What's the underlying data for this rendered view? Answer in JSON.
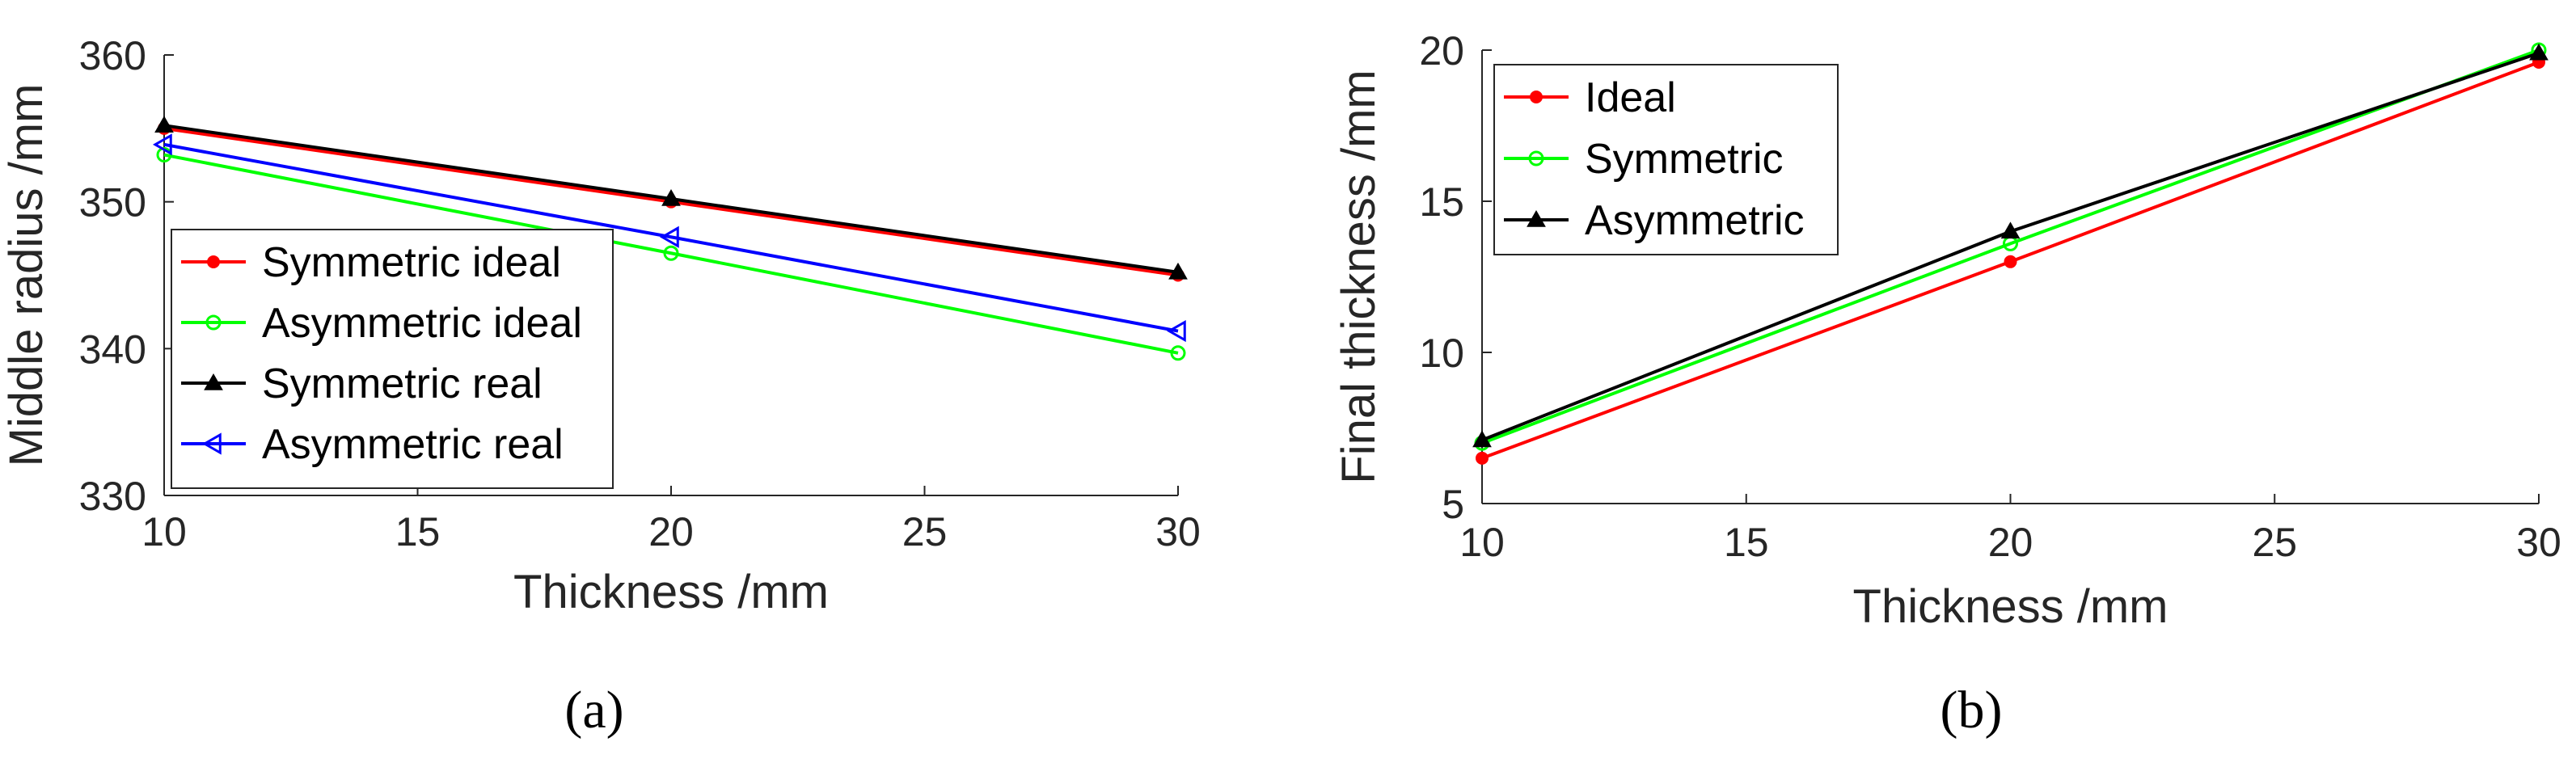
{
  "chart_data": [
    {
      "type": "line",
      "panel_label": "(a)",
      "title": "",
      "xlabel": "Thickness /mm",
      "ylabel": "Middle radius /mm",
      "xlim": [
        10,
        30
      ],
      "ylim": [
        330,
        360
      ],
      "xticks": [
        10,
        15,
        20,
        25,
        30
      ],
      "yticks": [
        330,
        340,
        350,
        360
      ],
      "xtick_labels": [
        "10",
        "15",
        "20",
        "25",
        "30"
      ],
      "ytick_labels": [
        "330",
        "340",
        "350",
        "360"
      ],
      "grid": false,
      "legend_position": "bottom-left",
      "x": [
        10,
        20,
        30
      ],
      "series": [
        {
          "name": "Symmetric ideal",
          "color": "#ff0000",
          "marker": "dot",
          "values": [
            355.0,
            350.0,
            345.0
          ]
        },
        {
          "name": "Asymmetric ideal",
          "color": "#00ff00",
          "marker": "circle",
          "values": [
            353.2,
            346.5,
            339.7
          ]
        },
        {
          "name": "Symmetric real",
          "color": "#000000",
          "marker": "triangle-up",
          "values": [
            355.2,
            350.2,
            345.2
          ]
        },
        {
          "name": "Asymmetric real",
          "color": "#0000ff",
          "marker": "triangle-left",
          "values": [
            353.9,
            347.6,
            341.2
          ]
        }
      ]
    },
    {
      "type": "line",
      "panel_label": "(b)",
      "title": "",
      "xlabel": "Thickness /mm",
      "ylabel": "Final thickness /mm",
      "xlim": [
        10,
        30
      ],
      "ylim": [
        5,
        20
      ],
      "xticks": [
        10,
        15,
        20,
        25,
        30
      ],
      "yticks": [
        5,
        10,
        15,
        20
      ],
      "xtick_labels": [
        "10",
        "15",
        "20",
        "25",
        "30"
      ],
      "ytick_labels": [
        "5",
        "10",
        "15",
        "20"
      ],
      "grid": false,
      "legend_position": "top-left",
      "x": [
        10,
        20,
        30
      ],
      "series": [
        {
          "name": "Ideal",
          "color": "#ff0000",
          "marker": "dot",
          "values": [
            6.5,
            13.0,
            19.6
          ]
        },
        {
          "name": "Symmetric",
          "color": "#00ff00",
          "marker": "circle",
          "values": [
            7.0,
            13.6,
            20.0
          ]
        },
        {
          "name": "Asymmetric",
          "color": "#000000",
          "marker": "triangle-up",
          "values": [
            7.1,
            14.0,
            19.9
          ]
        }
      ]
    }
  ]
}
